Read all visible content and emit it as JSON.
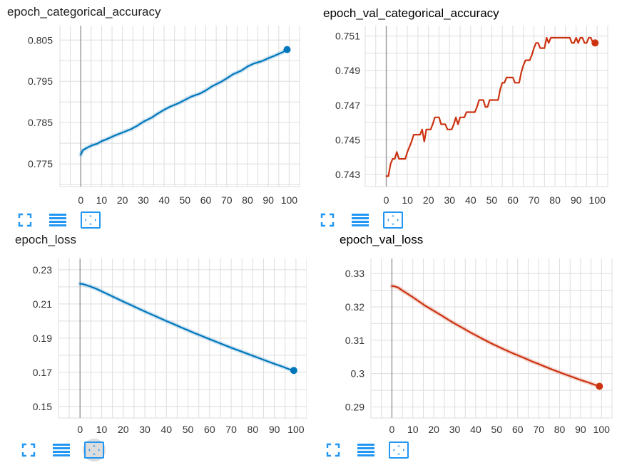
{
  "chart_data": [
    {
      "type": "line",
      "title": "epoch_categorical_accuracy",
      "xlabel": "",
      "ylabel": "",
      "xlim": [
        -10,
        105
      ],
      "ylim": [
        0.7695,
        0.8085
      ],
      "xticks": [
        0,
        10,
        20,
        30,
        40,
        50,
        60,
        70,
        80,
        90,
        100
      ],
      "yticks": [
        0.775,
        0.785,
        0.795,
        0.805
      ],
      "ytick_labels": [
        "0.775",
        "0.785",
        "0.795",
        "0.805"
      ],
      "grid": true,
      "color": "#0077bb",
      "series": [
        {
          "x": [
            0,
            1,
            3,
            5,
            8,
            10,
            13,
            16,
            20,
            24,
            27,
            30,
            34,
            37,
            40,
            43,
            47,
            50,
            53,
            57,
            60,
            63,
            67,
            70,
            73,
            77,
            80,
            83,
            87,
            90,
            93,
            97,
            99
          ],
          "y": [
            0.7772,
            0.7783,
            0.7789,
            0.7794,
            0.7799,
            0.7805,
            0.7811,
            0.7818,
            0.7826,
            0.7834,
            0.7842,
            0.7852,
            0.7862,
            0.7872,
            0.7881,
            0.7889,
            0.7897,
            0.7905,
            0.7913,
            0.792,
            0.7928,
            0.7938,
            0.7948,
            0.7957,
            0.7967,
            0.7976,
            0.7986,
            0.7993,
            0.7999,
            0.8006,
            0.8012,
            0.8021,
            0.8027
          ]
        }
      ]
    },
    {
      "type": "line",
      "title": "epoch_val_categorical_accuracy",
      "xlabel": "",
      "ylabel": "",
      "xlim": [
        -10,
        105
      ],
      "ylim": [
        0.7423,
        0.7516
      ],
      "xticks": [
        0,
        10,
        20,
        30,
        40,
        50,
        60,
        70,
        80,
        90,
        100
      ],
      "yticks": [
        0.743,
        0.745,
        0.747,
        0.749,
        0.751
      ],
      "ytick_labels": [
        "0.743",
        "0.745",
        "0.747",
        "0.749",
        "0.751"
      ],
      "grid": true,
      "color": "#cc3311",
      "series": [
        {
          "x": [
            0,
            1,
            2,
            3,
            4,
            5,
            6,
            7,
            8,
            9,
            10,
            11,
            12,
            13,
            14,
            15,
            16,
            17,
            18,
            19,
            20,
            21,
            22,
            23,
            24,
            25,
            26,
            27,
            28,
            29,
            30,
            31,
            32,
            33,
            34,
            35,
            36,
            37,
            38,
            39,
            40,
            41,
            42,
            43,
            44,
            45,
            46,
            47,
            48,
            49,
            50,
            51,
            52,
            53,
            54,
            55,
            56,
            57,
            58,
            59,
            60,
            61,
            62,
            63,
            64,
            65,
            66,
            67,
            68,
            69,
            70,
            71,
            72,
            73,
            74,
            75,
            76,
            77,
            78,
            79,
            80,
            81,
            82,
            83,
            84,
            85,
            86,
            87,
            88,
            89,
            90,
            91,
            92,
            93,
            94,
            95,
            96,
            97,
            98,
            99
          ],
          "y": [
            0.7429,
            0.7429,
            0.7436,
            0.7439,
            0.7439,
            0.7443,
            0.7439,
            0.7439,
            0.7439,
            0.7439,
            0.7443,
            0.7446,
            0.7449,
            0.7453,
            0.7453,
            0.7453,
            0.7453,
            0.7456,
            0.7449,
            0.7456,
            0.7456,
            0.7456,
            0.7459,
            0.7463,
            0.7463,
            0.7463,
            0.7459,
            0.7459,
            0.7459,
            0.7456,
            0.7456,
            0.7456,
            0.7459,
            0.7463,
            0.7459,
            0.7463,
            0.7463,
            0.7463,
            0.7466,
            0.7466,
            0.7466,
            0.7466,
            0.7466,
            0.7469,
            0.7473,
            0.7473,
            0.7473,
            0.7469,
            0.7469,
            0.7473,
            0.7473,
            0.7473,
            0.7473,
            0.7473,
            0.7479,
            0.7483,
            0.7483,
            0.7486,
            0.7486,
            0.7486,
            0.7486,
            0.7483,
            0.7483,
            0.7483,
            0.7489,
            0.7493,
            0.7496,
            0.7496,
            0.7496,
            0.7499,
            0.7503,
            0.7506,
            0.7506,
            0.7503,
            0.7503,
            0.7503,
            0.7509,
            0.7506,
            0.7509,
            0.7509,
            0.7509,
            0.7509,
            0.7509,
            0.7509,
            0.7509,
            0.7509,
            0.7509,
            0.7509,
            0.7506,
            0.7506,
            0.7509,
            0.7506,
            0.7509,
            0.7509,
            0.7506,
            0.7506,
            0.7509,
            0.7509,
            0.7506,
            0.7506
          ]
        }
      ]
    },
    {
      "type": "line",
      "title": "epoch_loss",
      "xlabel": "",
      "ylabel": "",
      "xlim": [
        -10,
        105
      ],
      "ylim": [
        0.1433,
        0.2366
      ],
      "xticks": [
        0,
        10,
        20,
        30,
        40,
        50,
        60,
        70,
        80,
        90,
        100
      ],
      "yticks": [
        0.15,
        0.17,
        0.19,
        0.21,
        0.23
      ],
      "ytick_labels": [
        "0.15",
        "0.17",
        "0.19",
        "0.21",
        "0.23"
      ],
      "grid": true,
      "color": "#0077bb",
      "series": [
        {
          "x": [
            0,
            1,
            3,
            5,
            8,
            10,
            13,
            16,
            20,
            24,
            27,
            30,
            34,
            37,
            40,
            43,
            47,
            50,
            53,
            57,
            60,
            63,
            67,
            70,
            73,
            77,
            80,
            83,
            87,
            90,
            93,
            97,
            99
          ],
          "y": [
            0.2218,
            0.2217,
            0.221,
            0.2201,
            0.2186,
            0.2174,
            0.2156,
            0.2138,
            0.2114,
            0.2091,
            0.2073,
            0.2056,
            0.2034,
            0.2017,
            0.2,
            0.1984,
            0.1962,
            0.1946,
            0.193,
            0.191,
            0.1894,
            0.1879,
            0.1859,
            0.1844,
            0.183,
            0.1811,
            0.1797,
            0.1783,
            0.1764,
            0.175,
            0.1737,
            0.1718,
            0.1711
          ]
        }
      ]
    },
    {
      "type": "line",
      "title": "epoch_val_loss",
      "xlabel": "",
      "ylabel": "",
      "xlim": [
        -10,
        105
      ],
      "ylim": [
        0.2867,
        0.3345
      ],
      "xticks": [
        0,
        10,
        20,
        30,
        40,
        50,
        60,
        70,
        80,
        90,
        100
      ],
      "yticks": [
        0.29,
        0.3,
        0.31,
        0.32,
        0.33
      ],
      "ytick_labels": [
        "0.29",
        "0.3",
        "0.31",
        "0.32",
        "0.33"
      ],
      "grid": true,
      "color": "#cc3311",
      "series": [
        {
          "x": [
            0,
            1,
            3,
            5,
            8,
            10,
            13,
            16,
            20,
            24,
            27,
            30,
            34,
            37,
            40,
            43,
            47,
            50,
            53,
            57,
            60,
            63,
            67,
            70,
            73,
            77,
            80,
            83,
            87,
            90,
            93,
            97,
            99
          ],
          "y": [
            0.3262,
            0.3262,
            0.3258,
            0.3249,
            0.3237,
            0.3229,
            0.3216,
            0.3203,
            0.3188,
            0.3173,
            0.3161,
            0.315,
            0.3136,
            0.3125,
            0.3115,
            0.3105,
            0.3092,
            0.3083,
            0.3074,
            0.3063,
            0.3055,
            0.3047,
            0.3036,
            0.3029,
            0.3021,
            0.3011,
            0.3004,
            0.2997,
            0.2988,
            0.2981,
            0.2975,
            0.2966,
            0.2962
          ]
        }
      ]
    }
  ],
  "tool_icons": [
    "expand-icon",
    "list-icon",
    "fit-domain-icon"
  ]
}
